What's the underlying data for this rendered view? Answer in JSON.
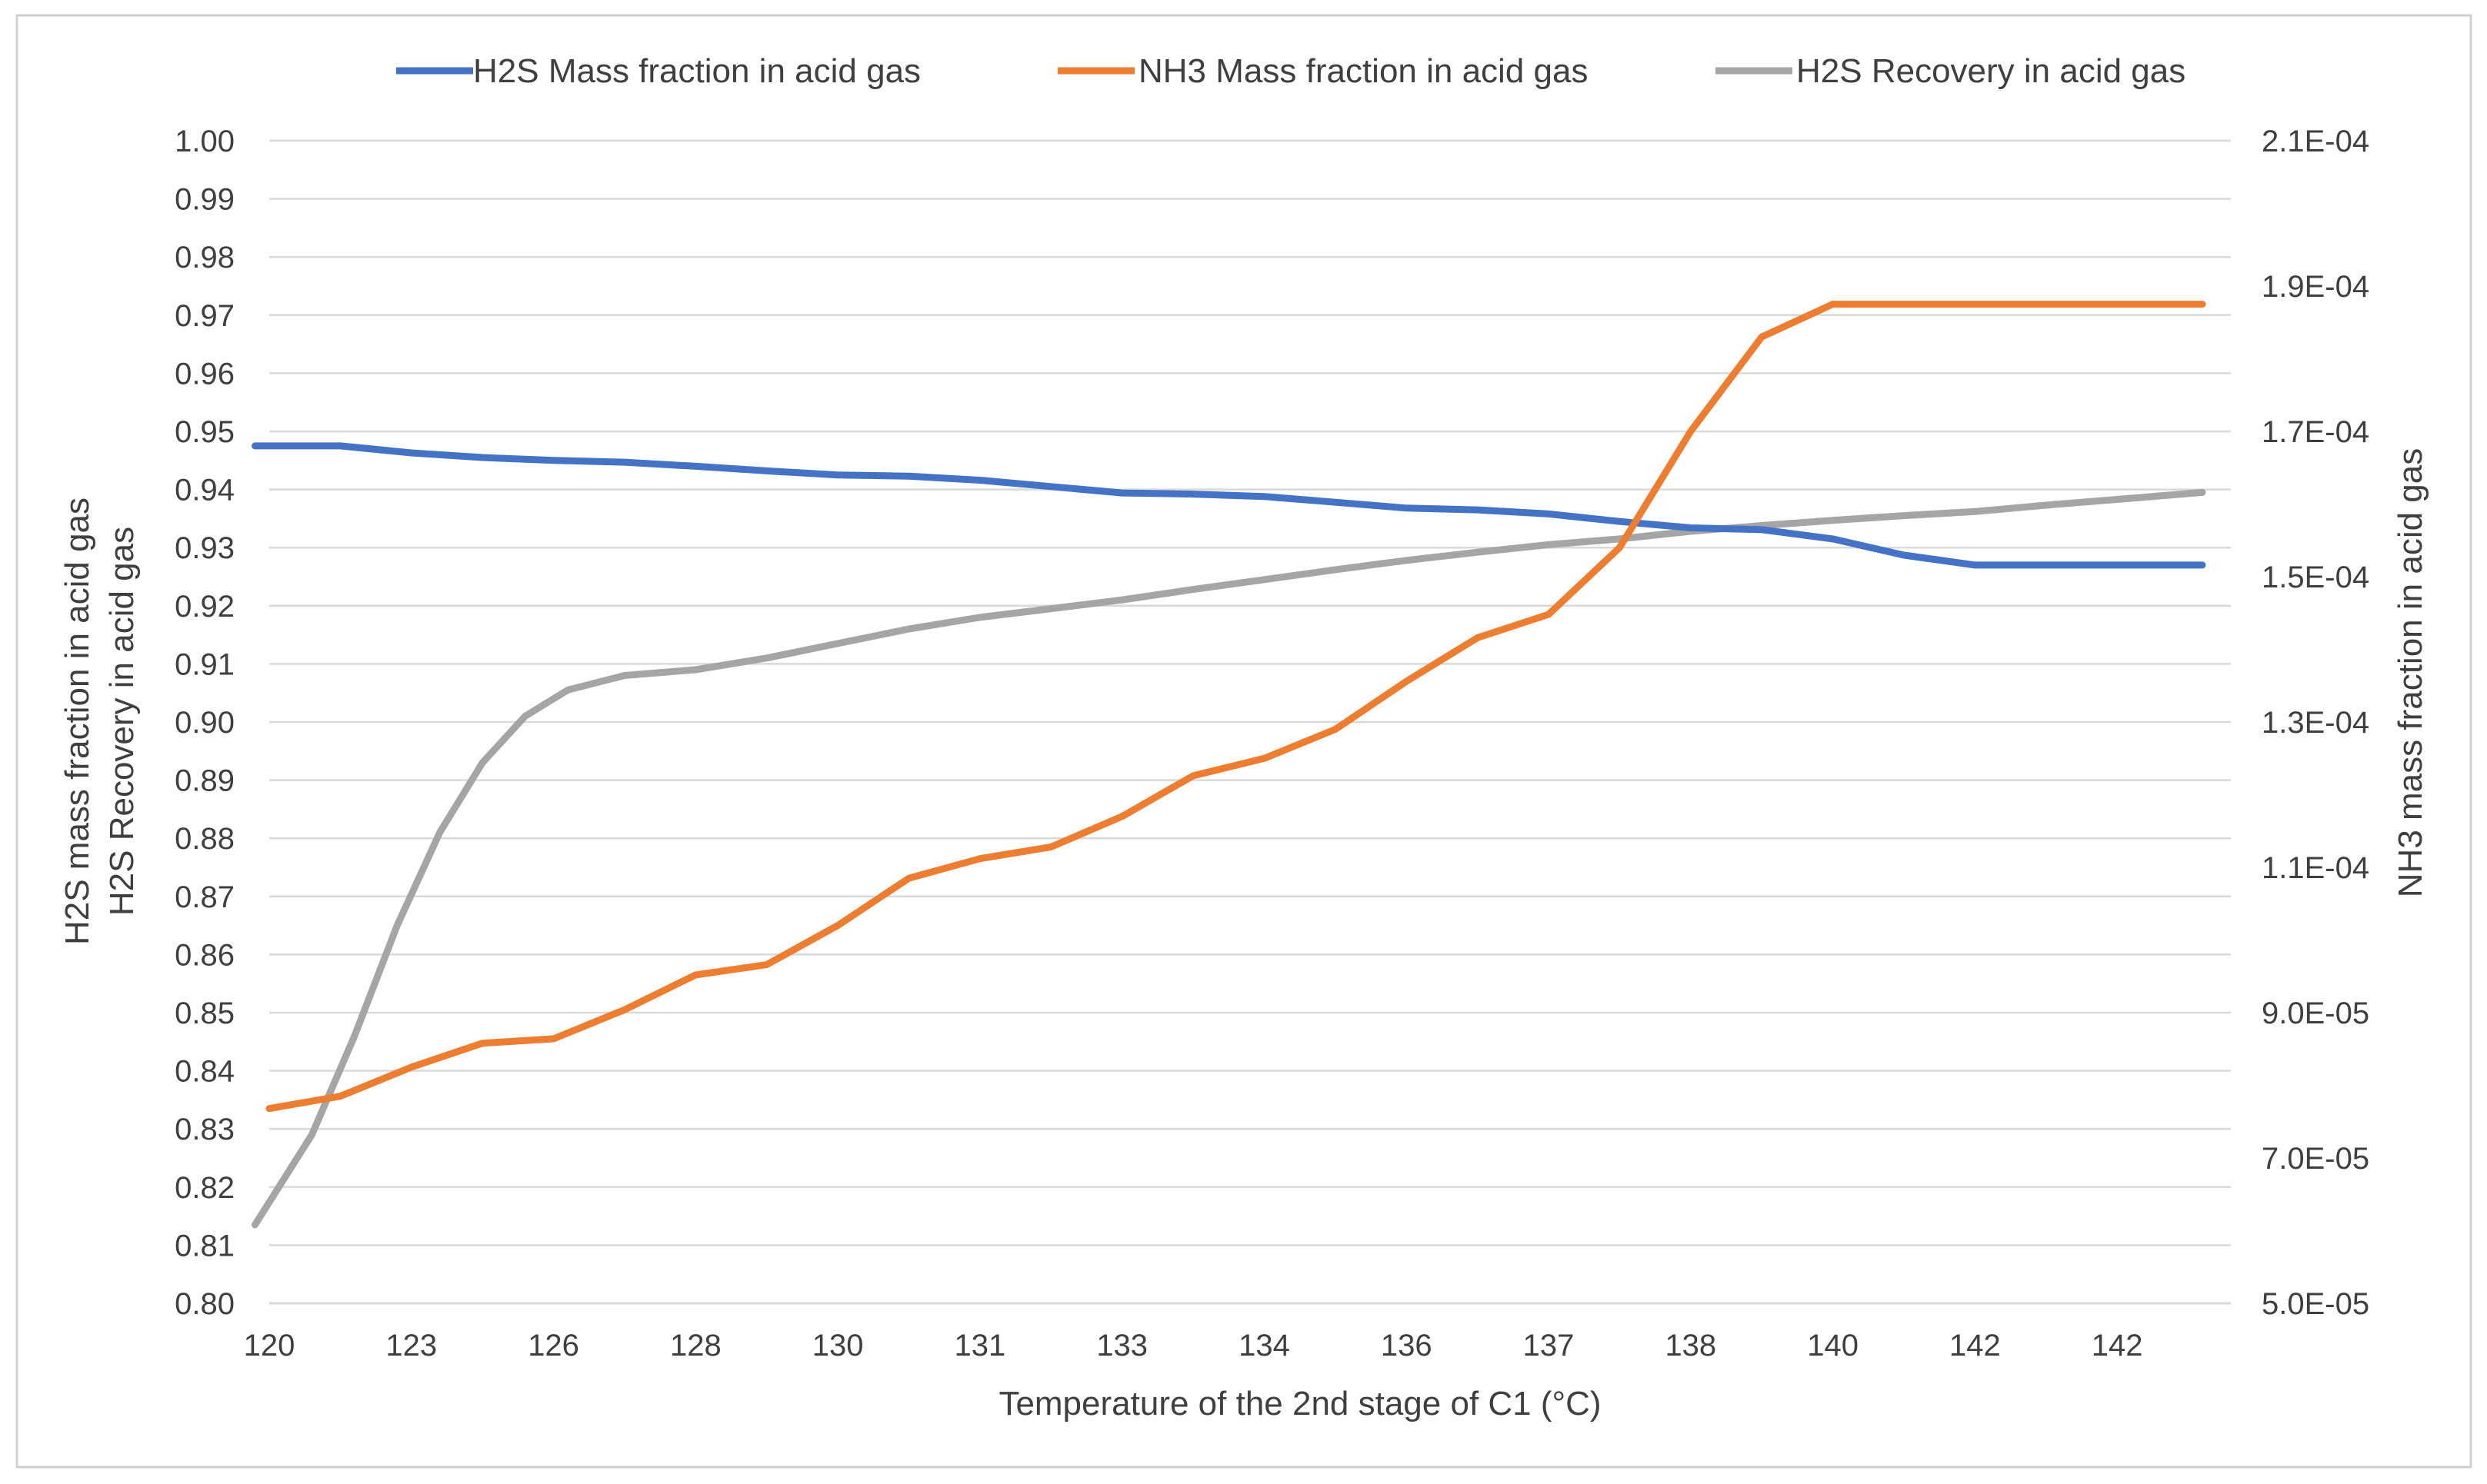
{
  "chart_data": {
    "type": "line",
    "title": "",
    "legend_position": "top",
    "xlabel": "Temperature of the 2nd stage of C1 (°C)",
    "ylabel_left": [
      "H2S mass fraction in acid gas",
      "H2S Recovery in acid gas"
    ],
    "ylabel_right": "NH3 mass fraction in acid gas",
    "x_tick_labels": [
      "120",
      "123",
      "126",
      "128",
      "130",
      "131",
      "133",
      "134",
      "136",
      "137",
      "138",
      "140",
      "142",
      "142"
    ],
    "x_range": [
      0,
      13.8
    ],
    "y_left_ticks": [
      "1.00",
      "0.99",
      "0.98",
      "0.97",
      "0.96",
      "0.95",
      "0.94",
      "0.93",
      "0.92",
      "0.91",
      "0.90",
      "0.89",
      "0.88",
      "0.87",
      "0.86",
      "0.85",
      "0.84",
      "0.83",
      "0.82",
      "0.81",
      "0.80"
    ],
    "y_left_range": [
      0.8,
      1.0
    ],
    "y_right_ticks": [
      "2.1E-04",
      "1.9E-04",
      "1.7E-04",
      "1.5E-04",
      "1.3E-04",
      "1.1E-04",
      "9.0E-05",
      "7.0E-05",
      "5.0E-05"
    ],
    "y_right_range": [
      5e-05,
      0.00021
    ],
    "grid": true,
    "series": [
      {
        "name": "H2S Mass fraction in acid gas",
        "axis": "left",
        "color": "#4472c4",
        "x": [
          -0.1,
          0.5,
          1,
          1.5,
          2,
          2.5,
          3,
          3.5,
          4,
          4.5,
          5,
          5.5,
          6,
          6.5,
          7,
          7.5,
          8,
          8.5,
          9,
          9.5,
          10,
          10.5,
          11,
          11.5,
          12,
          12.5,
          13,
          13.6
        ],
        "values": [
          0.9475,
          0.9475,
          0.9463,
          0.9455,
          0.945,
          0.9447,
          0.944,
          0.9432,
          0.9425,
          0.9423,
          0.9416,
          0.9405,
          0.9394,
          0.9392,
          0.9388,
          0.9378,
          0.9368,
          0.9365,
          0.9358,
          0.9345,
          0.9334,
          0.9331,
          0.9315,
          0.9287,
          0.927,
          0.927,
          0.927,
          0.927
        ]
      },
      {
        "name": "NH3 Mass fraction in acid gas",
        "axis": "right",
        "color": "#ed7d31",
        "x": [
          0,
          0.5,
          1,
          1.5,
          2,
          2.5,
          3,
          3.5,
          4,
          4.5,
          5,
          5.5,
          6,
          6.5,
          7,
          7.5,
          8,
          8.5,
          9,
          9.5,
          10,
          10.5,
          11,
          11.5,
          12,
          12.5,
          13,
          13.6
        ],
        "values": [
          7.68e-05,
          7.85e-05,
          8.25e-05,
          8.58e-05,
          8.64e-05,
          9.04e-05,
          9.52e-05,
          9.66e-05,
          0.000102,
          0.0001085,
          0.0001112,
          0.0001128,
          0.000117,
          0.0001226,
          0.000125,
          0.000129,
          0.0001356,
          0.0001416,
          0.0001448,
          0.000154,
          0.00017,
          0.000183,
          0.0001875,
          0.0001875,
          0.0001875,
          0.0001875,
          0.0001875,
          0.0001875
        ]
      },
      {
        "name": "H2S Recovery in acid gas",
        "axis": "left",
        "color": "#a5a5a5",
        "x": [
          -0.1,
          0.3,
          0.6,
          0.9,
          1.2,
          1.5,
          1.8,
          2.1,
          2.5,
          3,
          3.5,
          4,
          4.5,
          5,
          5.5,
          6,
          6.5,
          7,
          7.5,
          8,
          8.5,
          9,
          9.5,
          10,
          10.5,
          11,
          11.5,
          12,
          12.5,
          13,
          13.6
        ],
        "values": [
          0.8135,
          0.829,
          0.846,
          0.865,
          0.881,
          0.893,
          0.901,
          0.9055,
          0.908,
          0.909,
          0.911,
          0.9135,
          0.916,
          0.918,
          0.9195,
          0.921,
          0.9228,
          0.9245,
          0.9262,
          0.9278,
          0.9292,
          0.9305,
          0.9315,
          0.9328,
          0.9338,
          0.9347,
          0.9355,
          0.9362,
          0.9373,
          0.9383,
          0.9395
        ]
      }
    ]
  }
}
